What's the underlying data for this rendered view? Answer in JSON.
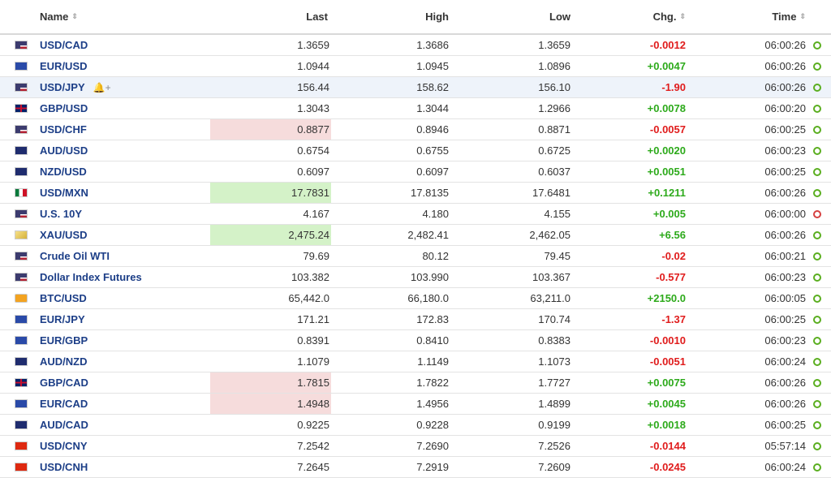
{
  "headers": {
    "name": "Name",
    "last": "Last",
    "high": "High",
    "low": "Low",
    "chg": "Chg.",
    "time": "Time",
    "sort_glyph": "⇕"
  },
  "rows": [
    {
      "name": "USD/CAD",
      "last": "1.3659",
      "high": "1.3686",
      "low": "1.3659",
      "chg": "-0.0012",
      "time": "06:00:26",
      "dir": "neg",
      "flag": "us",
      "clock": "green",
      "last_bg": ""
    },
    {
      "name": "EUR/USD",
      "last": "1.0944",
      "high": "1.0945",
      "low": "1.0896",
      "chg": "+0.0047",
      "time": "06:00:26",
      "dir": "pos",
      "flag": "eu",
      "clock": "green",
      "last_bg": ""
    },
    {
      "name": "USD/JPY",
      "last": "156.44",
      "high": "158.62",
      "low": "156.10",
      "chg": "-1.90",
      "time": "06:00:26",
      "dir": "neg",
      "flag": "us",
      "clock": "green",
      "last_bg": "",
      "highlight": true,
      "bell": "🔔+"
    },
    {
      "name": "GBP/USD",
      "last": "1.3043",
      "high": "1.3044",
      "low": "1.2966",
      "chg": "+0.0078",
      "time": "06:00:20",
      "dir": "pos",
      "flag": "gb",
      "clock": "green",
      "last_bg": ""
    },
    {
      "name": "USD/CHF",
      "last": "0.8877",
      "high": "0.8946",
      "low": "0.8871",
      "chg": "-0.0057",
      "time": "06:00:25",
      "dir": "neg",
      "flag": "us",
      "clock": "green",
      "last_bg": "red"
    },
    {
      "name": "AUD/USD",
      "last": "0.6754",
      "high": "0.6755",
      "low": "0.6725",
      "chg": "+0.0020",
      "time": "06:00:23",
      "dir": "pos",
      "flag": "au",
      "clock": "green",
      "last_bg": ""
    },
    {
      "name": "NZD/USD",
      "last": "0.6097",
      "high": "0.6097",
      "low": "0.6037",
      "chg": "+0.0051",
      "time": "06:00:25",
      "dir": "pos",
      "flag": "au",
      "clock": "green",
      "last_bg": ""
    },
    {
      "name": "USD/MXN",
      "last": "17.7831",
      "high": "17.8135",
      "low": "17.6481",
      "chg": "+0.1211",
      "time": "06:00:26",
      "dir": "pos",
      "flag": "mx",
      "clock": "green",
      "last_bg": "green"
    },
    {
      "name": "U.S. 10Y",
      "last": "4.167",
      "high": "4.180",
      "low": "4.155",
      "chg": "+0.005",
      "time": "06:00:00",
      "dir": "pos",
      "flag": "us",
      "clock": "red",
      "last_bg": ""
    },
    {
      "name": "XAU/USD",
      "last": "2,475.24",
      "high": "2,482.41",
      "low": "2,462.05",
      "chg": "+6.56",
      "time": "06:00:26",
      "dir": "pos",
      "flag": "gold",
      "clock": "green",
      "last_bg": "green"
    },
    {
      "name": "Crude Oil WTI",
      "last": "79.69",
      "high": "80.12",
      "low": "79.45",
      "chg": "-0.02",
      "time": "06:00:21",
      "dir": "neg",
      "flag": "us",
      "clock": "green",
      "last_bg": ""
    },
    {
      "name": "Dollar Index Futures",
      "last": "103.382",
      "high": "103.990",
      "low": "103.367",
      "chg": "-0.577",
      "time": "06:00:23",
      "dir": "neg",
      "flag": "us",
      "clock": "green",
      "last_bg": ""
    },
    {
      "name": "BTC/USD",
      "last": "65,442.0",
      "high": "66,180.0",
      "low": "63,211.0",
      "chg": "+2150.0",
      "time": "06:00:05",
      "dir": "pos",
      "flag": "btc",
      "clock": "green",
      "last_bg": ""
    },
    {
      "name": "EUR/JPY",
      "last": "171.21",
      "high": "172.83",
      "low": "170.74",
      "chg": "-1.37",
      "time": "06:00:25",
      "dir": "neg",
      "flag": "eu",
      "clock": "green",
      "last_bg": ""
    },
    {
      "name": "EUR/GBP",
      "last": "0.8391",
      "high": "0.8410",
      "low": "0.8383",
      "chg": "-0.0010",
      "time": "06:00:23",
      "dir": "neg",
      "flag": "eu",
      "clock": "green",
      "last_bg": ""
    },
    {
      "name": "AUD/NZD",
      "last": "1.1079",
      "high": "1.1149",
      "low": "1.1073",
      "chg": "-0.0051",
      "time": "06:00:24",
      "dir": "neg",
      "flag": "au",
      "clock": "green",
      "last_bg": ""
    },
    {
      "name": "GBP/CAD",
      "last": "1.7815",
      "high": "1.7822",
      "low": "1.7727",
      "chg": "+0.0075",
      "time": "06:00:26",
      "dir": "pos",
      "flag": "gb",
      "clock": "green",
      "last_bg": "red"
    },
    {
      "name": "EUR/CAD",
      "last": "1.4948",
      "high": "1.4956",
      "low": "1.4899",
      "chg": "+0.0045",
      "time": "06:00:26",
      "dir": "pos",
      "flag": "eu",
      "clock": "green",
      "last_bg": "red"
    },
    {
      "name": "AUD/CAD",
      "last": "0.9225",
      "high": "0.9228",
      "low": "0.9199",
      "chg": "+0.0018",
      "time": "06:00:25",
      "dir": "pos",
      "flag": "au",
      "clock": "green",
      "last_bg": ""
    },
    {
      "name": "USD/CNY",
      "last": "7.2542",
      "high": "7.2690",
      "low": "7.2526",
      "chg": "-0.0144",
      "time": "05:57:14",
      "dir": "neg",
      "flag": "cn",
      "clock": "green",
      "last_bg": ""
    },
    {
      "name": "USD/CNH",
      "last": "7.2645",
      "high": "7.2919",
      "low": "7.2609",
      "chg": "-0.0245",
      "time": "06:00:24",
      "dir": "neg",
      "flag": "cn",
      "clock": "green",
      "last_bg": ""
    }
  ],
  "colors": {
    "positive": "#2daa1b",
    "negative": "#e01c1c",
    "link": "#1c3e87",
    "highlight_row": "#eef3fa",
    "last_up_bg": "#d4f2c8",
    "last_down_bg": "#f6dcdc"
  }
}
